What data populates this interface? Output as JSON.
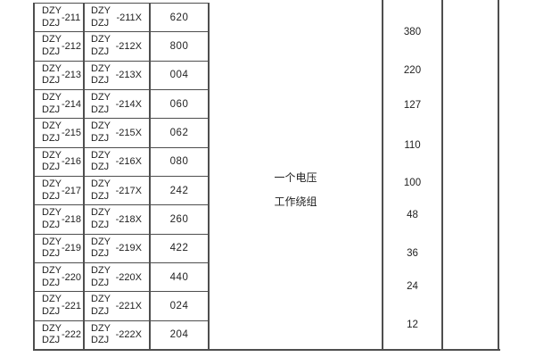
{
  "theme": {
    "background": "#ffffff",
    "line_color": "#4e4e4e",
    "text_color": "#1f1f1f"
  },
  "table": {
    "model_prefix_top": "DZY",
    "model_prefix_bottom": "DZJ",
    "rows": [
      {
        "base_suffix": "-211",
        "variant_suffix": "-211X",
        "code": "620"
      },
      {
        "base_suffix": "-212",
        "variant_suffix": "-212X",
        "code": "800"
      },
      {
        "base_suffix": "-213",
        "variant_suffix": "-213X",
        "code": "004"
      },
      {
        "base_suffix": "-214",
        "variant_suffix": "-214X",
        "code": "060"
      },
      {
        "base_suffix": "-215",
        "variant_suffix": "-215X",
        "code": "062"
      },
      {
        "base_suffix": "-216",
        "variant_suffix": "-216X",
        "code": "080"
      },
      {
        "base_suffix": "-217",
        "variant_suffix": "-217X",
        "code": "242"
      },
      {
        "base_suffix": "-218",
        "variant_suffix": "-218X",
        "code": "260"
      },
      {
        "base_suffix": "-219",
        "variant_suffix": "-219X",
        "code": "422"
      },
      {
        "base_suffix": "-220",
        "variant_suffix": "-220X",
        "code": "440"
      },
      {
        "base_suffix": "-221",
        "variant_suffix": "-221X",
        "code": "024"
      },
      {
        "base_suffix": "-222",
        "variant_suffix": "-222X",
        "code": "204"
      }
    ],
    "winding_cell": {
      "line1": "一个电压",
      "line2": "工作绕组"
    },
    "voltage_values": [
      "380",
      "220",
      "127",
      "110",
      "100",
      "48",
      "36",
      "24",
      "12"
    ]
  }
}
